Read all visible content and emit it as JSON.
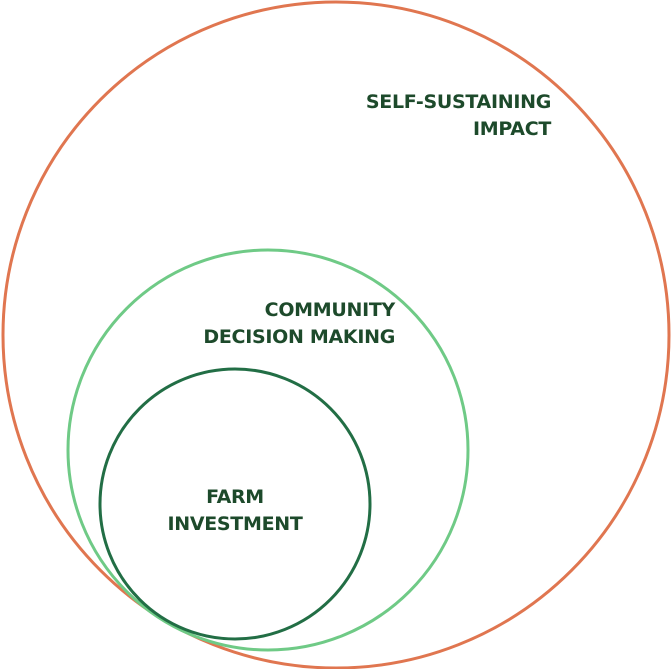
{
  "colors": {
    "outer_circle": "#e07650",
    "middle_circle": "#6fca86",
    "inner_circle": "#226e45",
    "label_text": "#1d4a2b"
  },
  "circles": {
    "outer": {
      "label_line1": "SELF-SUSTAINING",
      "label_line2": "IMPACT"
    },
    "middle": {
      "label_line1": "COMMUNITY",
      "label_line2": "DECISION MAKING"
    },
    "inner": {
      "label_line1": "FARM",
      "label_line2": "INVESTMENT"
    }
  }
}
